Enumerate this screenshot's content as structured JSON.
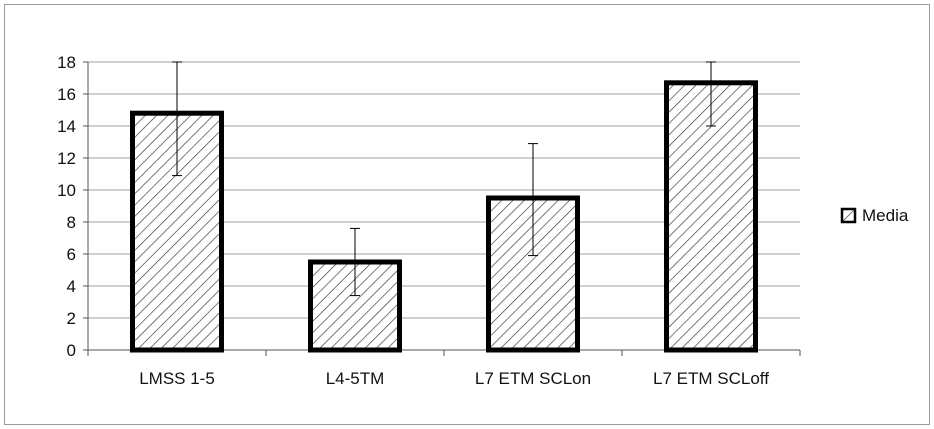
{
  "chart_data": {
    "type": "bar",
    "categories": [
      "LMSS 1-5",
      "L4-5TM",
      "L7 ETM SCLon",
      "L7 ETM SCLoff"
    ],
    "series": [
      {
        "name": "Media",
        "values": [
          14.8,
          5.5,
          9.5,
          16.7
        ]
      }
    ],
    "error_bars": {
      "upper": [
        18.0,
        7.6,
        12.9,
        18.0
      ],
      "lower": [
        10.9,
        3.4,
        5.9,
        14.0
      ]
    },
    "yticks": [
      "0",
      "2",
      "4",
      "6",
      "8",
      "10",
      "12",
      "14",
      "16",
      "18"
    ],
    "ylim": [
      0,
      18
    ],
    "grid": true,
    "legend_position": "right",
    "bar_fill": "diagonal-hatch",
    "colors": {
      "bar_stroke": "#000000",
      "hatch": "#333333",
      "grid": "#a0a0a0",
      "background": "#ffffff"
    }
  }
}
